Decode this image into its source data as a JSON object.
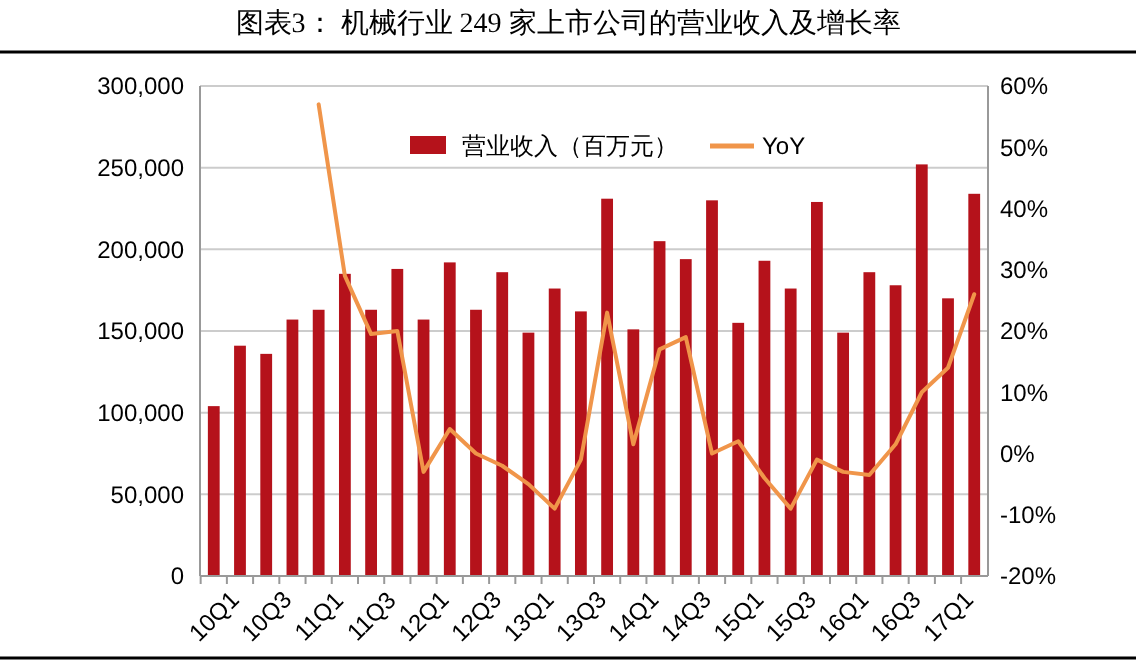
{
  "chart_data": {
    "type": "bar",
    "title": "图表3：  机械行业 249 家上市公司的营业收入及增长率",
    "categories": [
      "10Q1",
      null,
      "10Q3",
      null,
      "11Q1",
      null,
      "11Q3",
      null,
      "12Q1",
      null,
      "12Q3",
      null,
      "13Q1",
      null,
      "13Q3",
      null,
      "14Q1",
      null,
      "14Q3",
      null,
      "15Q1",
      null,
      "15Q3",
      null,
      "16Q1",
      null,
      "16Q3",
      null,
      "17Q1",
      null
    ],
    "series": [
      {
        "name": "营业收入（百万元）",
        "color": "#b5121b",
        "values": [
          104000,
          141000,
          136000,
          157000,
          163000,
          185000,
          163000,
          188000,
          157000,
          192000,
          163000,
          186000,
          149000,
          176000,
          162000,
          231000,
          151000,
          205000,
          194000,
          230000,
          155000,
          193000,
          176000,
          229000,
          149000,
          186000,
          178000,
          252000,
          170000,
          234000
        ]
      },
      {
        "name": "YoY",
        "type": "line",
        "axis": "y2",
        "color": "#f0954a",
        "values": [
          null,
          null,
          null,
          null,
          57,
          29,
          19.5,
          20,
          -3,
          4,
          0,
          -2,
          -5,
          -9,
          -1,
          23,
          1.5,
          17,
          19,
          0,
          2,
          -4,
          -9,
          -1,
          -3,
          -3.5,
          1.5,
          10,
          14,
          26
        ]
      }
    ],
    "ylim": [
      0,
      300000
    ],
    "yticks": [
      {
        "value": 0,
        "label": "0"
      },
      {
        "value": 50000,
        "label": "50,000"
      },
      {
        "value": 100000,
        "label": "100,000"
      },
      {
        "value": 150000,
        "label": "150,000"
      },
      {
        "value": 200000,
        "label": "200,000"
      },
      {
        "value": 250000,
        "label": "250,000"
      },
      {
        "value": 300000,
        "label": "300,000"
      }
    ],
    "y2lim": [
      -20,
      60
    ],
    "y2ticks": [
      {
        "value": -20,
        "label": "-20%"
      },
      {
        "value": -10,
        "label": "-10%"
      },
      {
        "value": 0,
        "label": "0%"
      },
      {
        "value": 10,
        "label": "10%"
      },
      {
        "value": 20,
        "label": "20%"
      },
      {
        "value": 30,
        "label": "30%"
      },
      {
        "value": 40,
        "label": "40%"
      },
      {
        "value": 50,
        "label": "50%"
      },
      {
        "value": 60,
        "label": "60%"
      }
    ],
    "grid": "y",
    "legend": "top"
  }
}
